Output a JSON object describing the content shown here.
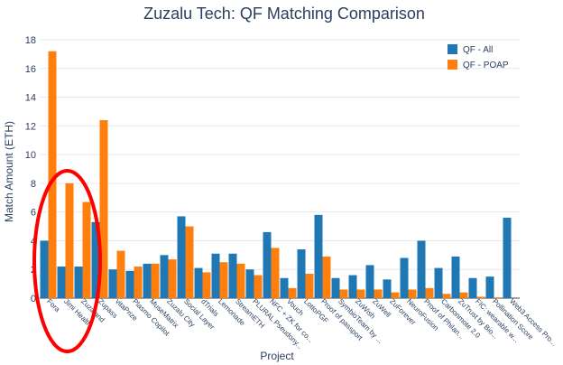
{
  "chart_data": {
    "type": "bar",
    "title": "Zuzalu Tech: QF Matching Comparison",
    "xlabel": "Project",
    "ylabel": "Match Amount (ETH)",
    "ylim": [
      0,
      18
    ],
    "yticks": [
      0,
      2,
      4,
      6,
      8,
      10,
      12,
      14,
      16,
      18
    ],
    "grid": true,
    "legend_position": "top-right",
    "categories": [
      "Fora",
      "Jimi Health",
      "Zuzaland",
      "Zupass",
      "vitaPrize",
      "Plasmo Copilot",
      "MuseMatrix",
      "Zuzalu City",
      "Social Layer",
      "dTrials",
      "Lemonade",
      "StreamETH",
      "PLURAL Pseudony...",
      "NFC + ZK for co...",
      "Vouch",
      "LottoPGF",
      "Proof of passport",
      "SymbioTeam by ...",
      "ZuWish",
      "ZuWell",
      "ZuForever",
      "NeuroFusion",
      "Proof of Philan...",
      "Carbonmote 2.0",
      "ZuTrust by Bio...",
      "FIC: wearable w...",
      "Pollination Score",
      "Web3 Access Pro..."
    ],
    "series": [
      {
        "name": "QF - All",
        "color": "#1f77b4",
        "values": [
          4.0,
          2.2,
          2.2,
          5.3,
          2.0,
          1.9,
          2.4,
          3.0,
          5.7,
          2.1,
          3.1,
          3.1,
          2.0,
          4.6,
          1.4,
          3.4,
          5.8,
          1.4,
          1.6,
          2.3,
          1.3,
          2.8,
          4.0,
          2.1,
          2.9,
          1.4,
          1.5,
          5.6
        ]
      },
      {
        "name": "QF - POAP",
        "color": "#ff7f0e",
        "values": [
          17.2,
          8.0,
          6.7,
          12.4,
          3.3,
          2.2,
          2.4,
          2.7,
          5.0,
          1.8,
          2.5,
          2.4,
          1.6,
          3.5,
          0.7,
          1.7,
          2.9,
          0.6,
          0.6,
          0.6,
          0.4,
          0.6,
          0.7,
          0.3,
          0.4,
          0.1,
          0.05,
          0.0
        ]
      }
    ],
    "annotations": [
      {
        "type": "ellipse",
        "color": "#ff0000",
        "covers_categories": [
          "Fora",
          "Jimi Health",
          "Zuzaland"
        ]
      }
    ]
  }
}
